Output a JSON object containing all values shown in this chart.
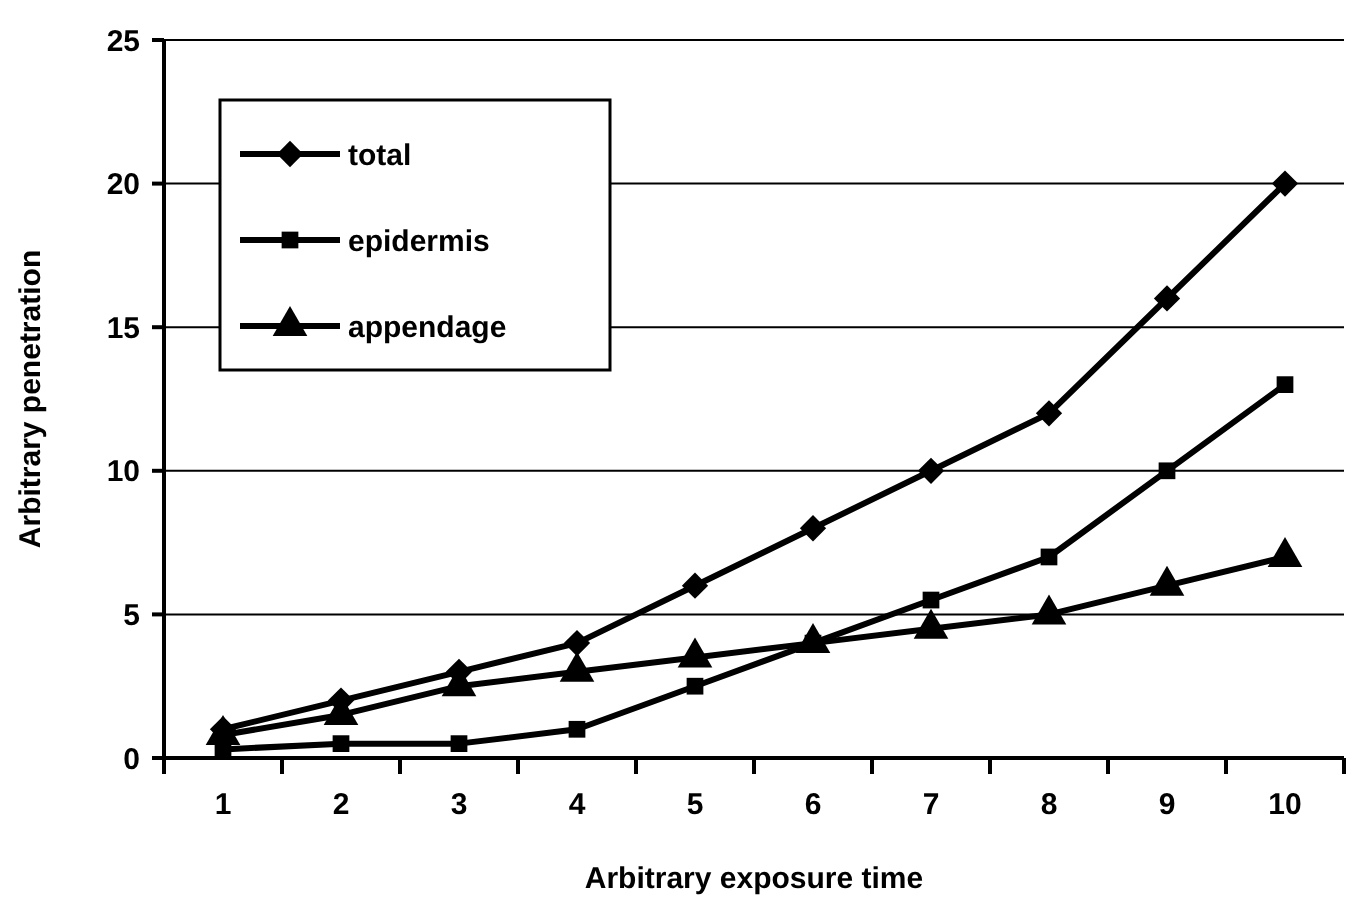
{
  "chart_data": {
    "type": "line",
    "xlabel": "Arbitrary exposure time",
    "ylabel": "Arbitrary penetration",
    "categories": [
      "1",
      "2",
      "3",
      "4",
      "5",
      "6",
      "7",
      "8",
      "9",
      "10"
    ],
    "series": [
      {
        "name": "total",
        "color": "#000000",
        "marker": "diamond",
        "values": [
          1,
          2,
          3,
          4,
          6,
          8,
          10,
          12,
          16,
          20
        ]
      },
      {
        "name": "epidermis",
        "color": "#000000",
        "marker": "square",
        "values": [
          0.3,
          0.5,
          0.5,
          1,
          2.5,
          4,
          5.5,
          7,
          10,
          13
        ]
      },
      {
        "name": "appendage",
        "color": "#000000",
        "marker": "triangle",
        "values": [
          0.8,
          1.5,
          2.5,
          3,
          3.5,
          4,
          4.5,
          5,
          6,
          7
        ]
      }
    ],
    "ylim": [
      0,
      25
    ],
    "yticks": [
      0,
      5,
      10,
      15,
      20,
      25
    ],
    "grid": "y",
    "legend": "top left",
    "line_style": "solid"
  }
}
